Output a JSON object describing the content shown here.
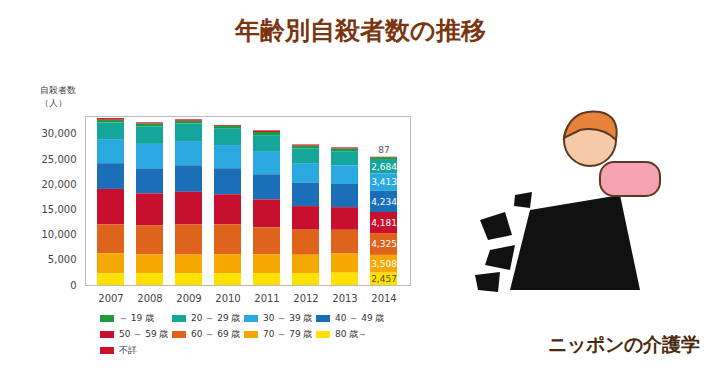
{
  "chart_data": {
    "type": "bar",
    "title": "年齢別自殺者数の推移",
    "y_label": "自殺者数\n（人）",
    "brand": "ニッポンの介護学",
    "stacked": true,
    "grid": false,
    "data_labels": true,
    "categories": [
      "2007",
      "2008",
      "2009",
      "2010",
      "2011",
      "2012",
      "2013",
      "2014"
    ],
    "ylim": [
      0,
      33500
    ],
    "yticks": [
      0,
      {
        "value": 5000,
        "label": "5,000"
      },
      {
        "value": 10000,
        "label": "10,000"
      },
      {
        "value": 15000,
        "label": "15,000"
      },
      {
        "value": 20000,
        "label": "20,000"
      },
      {
        "value": 25000,
        "label": "25,000"
      },
      {
        "value": 30000,
        "label": "30,000"
      }
    ],
    "series": [
      {
        "name": "～ 19 歳",
        "color": "#1f9a3f",
        "values": [
          548,
          611,
          565,
          552,
          622,
          587,
          547,
          538
        ],
        "value_labels": [
          null,
          null,
          null,
          null,
          null,
          null,
          null,
          null
        ]
      },
      {
        "name": "20 ～ 29 歳",
        "color": "#14a69a",
        "values": [
          3309,
          3438,
          3470,
          3240,
          3304,
          3000,
          2801,
          2684
        ],
        "value_labels": [
          null,
          null,
          null,
          null,
          null,
          null,
          null,
          "2,684"
        ]
      },
      {
        "name": "30 ～ 39 歳",
        "color": "#2aa9e0",
        "values": [
          4767,
          4850,
          4794,
          4596,
          4455,
          3781,
          3705,
          3413
        ],
        "value_labels": [
          null,
          null,
          null,
          null,
          null,
          null,
          null,
          "3,413"
        ]
      },
      {
        "name": "40 ～ 49 歳",
        "color": "#1b6fb8",
        "values": [
          5096,
          4970,
          5261,
          5165,
          4985,
          4616,
          4589,
          4234
        ],
        "value_labels": [
          null,
          null,
          null,
          null,
          null,
          null,
          null,
          "4,234"
        ]
      },
      {
        "name": "50 ～ 59 歳",
        "color": "#c8102e",
        "values": [
          7046,
          6363,
          6491,
          5959,
          5547,
          4669,
          4484,
          4181
        ],
        "value_labels": [
          null,
          null,
          null,
          null,
          null,
          null,
          null,
          "4,181"
        ]
      },
      {
        "name": "60 ～ 69 歳",
        "color": "#e0631c",
        "values": [
          5735,
          5735,
          5958,
          5908,
          5338,
          4976,
          4716,
          4325
        ],
        "value_labels": [
          null,
          null,
          null,
          null,
          null,
          null,
          null,
          "4,325"
        ]
      },
      {
        "name": "70 ～ 79 歳",
        "color": "#f5a800",
        "values": [
          3973,
          3697,
          3701,
          3785,
          3699,
          3627,
          3785,
          3508
        ],
        "value_labels": [
          null,
          null,
          null,
          null,
          null,
          null,
          null,
          "3,508"
        ]
      },
      {
        "name": "80 歳～",
        "color": "#ffe100",
        "values": [
          2295,
          2361,
          2326,
          2325,
          2377,
          2368,
          2445,
          2457
        ],
        "value_labels": [
          null,
          null,
          null,
          null,
          null,
          null,
          null,
          "2,457"
        ]
      },
      {
        "name": "不詳",
        "color": "#d0112b",
        "values": [
          324,
          224,
          279,
          160,
          324,
          234,
          211,
          87
        ],
        "value_labels": [
          null,
          null,
          null,
          null,
          null,
          null,
          null,
          "87"
        ]
      }
    ]
  }
}
